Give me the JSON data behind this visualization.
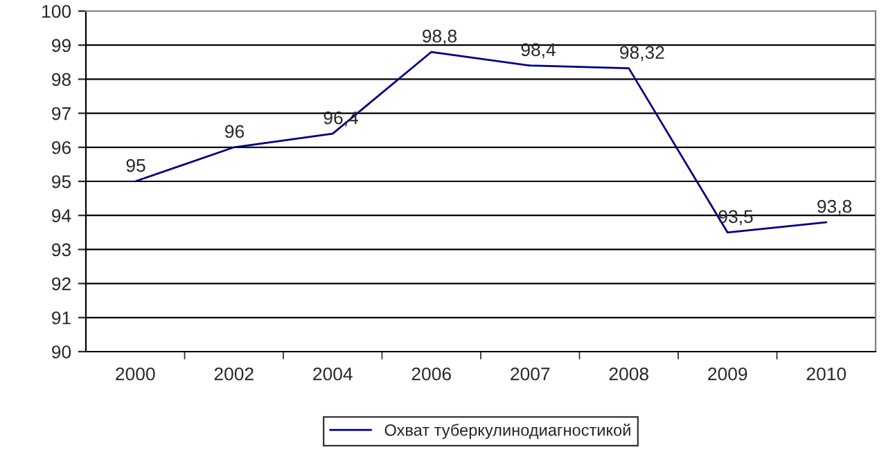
{
  "chart_data": {
    "type": "line",
    "categories": [
      "2000",
      "2002",
      "2004",
      "2006",
      "2007",
      "2008",
      "2009",
      "2010"
    ],
    "series": [
      {
        "name": "Охват туберкулинодиагностикой",
        "color": "#000080",
        "values": [
          95,
          96,
          96.4,
          98.8,
          98.4,
          98.32,
          93.5,
          93.8
        ],
        "value_labels": [
          "95",
          "96",
          "96,4",
          "98,8",
          "98,4",
          "98,32",
          "93,5",
          "93,8"
        ]
      }
    ],
    "ylim": [
      90,
      100
    ],
    "yticks": [
      90,
      91,
      92,
      93,
      94,
      95,
      96,
      97,
      98,
      99,
      100
    ],
    "grid": "y",
    "legend": "bottom",
    "marker": "none",
    "line_style": "solid"
  }
}
